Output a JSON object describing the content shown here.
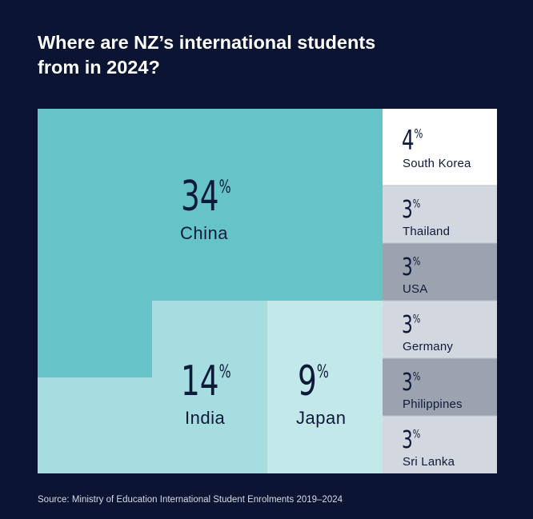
{
  "title_lines": [
    "Where are NZ’s international students",
    "from in 2024?"
  ],
  "source": "Source: Ministry of Education International Student Enrolments 2019–2024",
  "colors": {
    "background": "#0b1533",
    "text_dark": "#0e1a3a",
    "china": "#66c4c9",
    "india": "#a6dde0",
    "japan": "#c3e8ea",
    "south_korea": "#ffffff",
    "light_grey": "#d3d7df",
    "dark_grey": "#9da3ae",
    "divider": "#b9c0cc"
  },
  "chart_data": {
    "type": "treemap",
    "unit": "%",
    "items": [
      {
        "label": "China",
        "value": 34,
        "display": "34",
        "color": "#66c4c9"
      },
      {
        "label": "India",
        "value": 14,
        "display": "14",
        "color": "#a6dde0"
      },
      {
        "label": "Japan",
        "value": 9,
        "display": "9",
        "color": "#c3e8ea"
      },
      {
        "label": "South Korea",
        "value": 4,
        "display": "4",
        "color": "#ffffff"
      },
      {
        "label": "Thailand",
        "value": 3,
        "display": "3",
        "color": "#d3d7df"
      },
      {
        "label": "USA",
        "value": 3,
        "display": "3",
        "color": "#9da3ae"
      },
      {
        "label": "Germany",
        "value": 3,
        "display": "3",
        "color": "#d3d7df"
      },
      {
        "label": "Philippines",
        "value": 3,
        "display": "3",
        "color": "#9da3ae"
      },
      {
        "label": "Sri Lanka",
        "value": 3,
        "display": "3",
        "color": "#d3d7df"
      }
    ]
  }
}
